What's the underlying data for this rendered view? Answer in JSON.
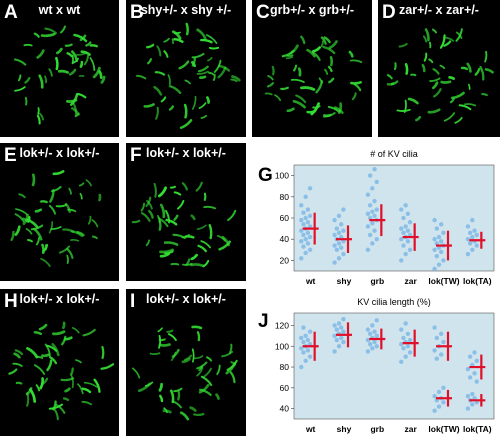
{
  "panels": [
    {
      "id": "A",
      "title": "wt  x  wt"
    },
    {
      "id": "B",
      "title": "shy+/-  x  shy +/-"
    },
    {
      "id": "C",
      "title": "grb+/-  x  grb+/-"
    },
    {
      "id": "D",
      "title": "zar+/-  x zar+/-"
    },
    {
      "id": "E",
      "title": "lok+/-  x lok+/-"
    },
    {
      "id": "F",
      "title": "lok+/-  x lok+/-"
    },
    {
      "id": "H",
      "title": "lok+/-  x lok+/-"
    },
    {
      "id": "I",
      "title": "lok+/-  x lok+/-"
    }
  ],
  "colors": {
    "cilia": "#33dd33",
    "plot_bg": "#cfe4ec",
    "dots": "#7fb8e8",
    "mean": "#e0102a"
  },
  "chart_data": [
    {
      "panel": "G",
      "type": "scatter",
      "title": "# of KV cilia",
      "categories": [
        "wt",
        "shy",
        "grb",
        "zar",
        "lok(TW)",
        "lok(TA)"
      ],
      "yticks": [
        "20",
        "40",
        "60",
        "80",
        "100"
      ],
      "ylim": [
        10,
        110
      ],
      "means": [
        50,
        40,
        58,
        42,
        34,
        39
      ],
      "sd": [
        15,
        13,
        15,
        13,
        14,
        8
      ],
      "points": [
        [
          22,
          27,
          30,
          33,
          36,
          38,
          40,
          42,
          44,
          46,
          48,
          50,
          52,
          54,
          56,
          58,
          60,
          62,
          65,
          68,
          72,
          80,
          88
        ],
        [
          18,
          22,
          26,
          30,
          32,
          34,
          36,
          38,
          40,
          42,
          44,
          46,
          48,
          50,
          54,
          58,
          62,
          68
        ],
        [
          30,
          36,
          40,
          44,
          48,
          52,
          55,
          58,
          60,
          62,
          64,
          66,
          68,
          72,
          76,
          82,
          88,
          94,
          100,
          106
        ],
        [
          20,
          26,
          30,
          34,
          38,
          40,
          42,
          44,
          46,
          48,
          50,
          52,
          56,
          60,
          64,
          68,
          72
        ],
        [
          12,
          16,
          20,
          24,
          28,
          30,
          32,
          34,
          36,
          38,
          40,
          42,
          46,
          50,
          54,
          58
        ],
        [
          26,
          30,
          34,
          36,
          38,
          40,
          42,
          44,
          46,
          48,
          52,
          58
        ]
      ]
    },
    {
      "panel": "J",
      "type": "scatter",
      "title": "KV cilia length (%)",
      "categories": [
        "wt",
        "shy",
        "grb",
        "zar",
        "lok(TW)",
        "lok(TA)"
      ],
      "yticks": [
        "40",
        "60",
        "80",
        "100",
        "120"
      ],
      "ylim": [
        30,
        132
      ],
      "means": [
        [
          100
        ],
        [
          111
        ],
        [
          107
        ],
        [
          103
        ],
        [
          100,
          50
        ],
        [
          80,
          48
        ]
      ],
      "sd": [
        [
          14
        ],
        [
          12
        ],
        [
          10
        ],
        [
          13
        ],
        [
          14,
          8
        ],
        [
          12,
          6
        ]
      ],
      "points": [
        [
          80,
          86,
          90,
          94,
          96,
          98,
          100,
          102,
          104,
          106,
          108,
          110,
          114,
          118
        ],
        [
          95,
          100,
          104,
          106,
          108,
          110,
          112,
          114,
          116,
          118,
          120,
          122,
          126
        ],
        [
          95,
          98,
          100,
          102,
          104,
          106,
          108,
          110,
          112,
          114,
          116,
          120,
          125
        ],
        [
          85,
          90,
          94,
          98,
          100,
          102,
          104,
          106,
          108,
          112,
          116,
          122
        ],
        [
          38,
          42,
          46,
          48,
          50,
          52,
          56,
          60,
          88,
          92,
          96,
          100,
          104,
          108,
          112,
          118
        ],
        [
          40,
          44,
          46,
          48,
          50,
          52,
          54,
          66,
          70,
          74,
          78,
          82,
          86,
          90,
          94
        ]
      ]
    }
  ]
}
